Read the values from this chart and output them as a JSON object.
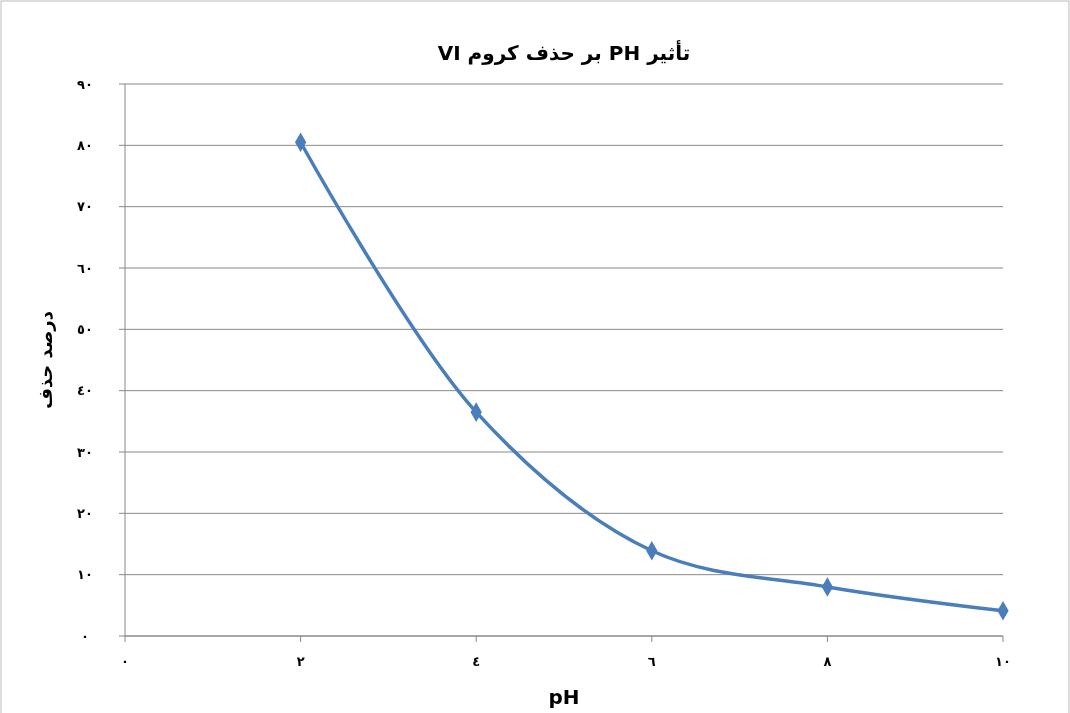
{
  "chart_data": {
    "type": "line",
    "title": "تأثیر PH بر حذف کروم VI",
    "xlabel": "pH",
    "ylabel": "درصد حذف",
    "x": [
      2,
      4,
      6,
      8,
      10
    ],
    "series": [
      {
        "color": "#4a7ebb",
        "values": [
          80.5,
          36.5,
          13.9,
          8,
          4.1
        ]
      }
    ],
    "xlim": [
      0,
      10
    ],
    "xticks": [
      {
        "value": 0,
        "label": "٠"
      },
      {
        "value": 2,
        "label": "٢"
      },
      {
        "value": 4,
        "label": "٤"
      },
      {
        "value": 6,
        "label": "٦"
      },
      {
        "value": 8,
        "label": "٨"
      },
      {
        "value": 10,
        "label": "١٠"
      }
    ],
    "ylim": [
      0,
      90
    ],
    "yticks": [
      {
        "value": 0,
        "label": "٠"
      },
      {
        "value": 10,
        "label": "١٠"
      },
      {
        "value": 20,
        "label": "٢٠"
      },
      {
        "value": 30,
        "label": "٣٠"
      },
      {
        "value": 40,
        "label": "٤٠"
      },
      {
        "value": 50,
        "label": "٥٠"
      },
      {
        "value": 60,
        "label": "٦٠"
      },
      {
        "value": 70,
        "label": "٧٠"
      },
      {
        "value": 80,
        "label": "٨٠"
      },
      {
        "value": 90,
        "label": "٩٠"
      }
    ],
    "grid": "y",
    "marker": "diamond",
    "line_style": "solid"
  }
}
